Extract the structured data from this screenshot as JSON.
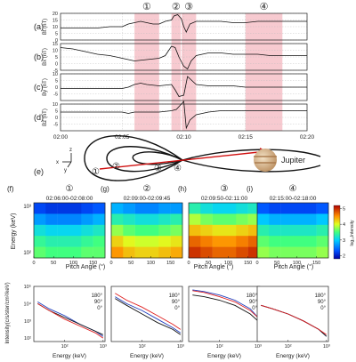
{
  "time_axis": {
    "ticks": [
      "02:00",
      "02:05",
      "02:10",
      "02:15",
      "02:20"
    ],
    "t_start_min": 0,
    "t_end_min": 20
  },
  "shaded_intervals": [
    {
      "marker": "①",
      "start_min": 6,
      "end_min": 8
    },
    {
      "marker": "②",
      "start_min": 9,
      "end_min": 9.75
    },
    {
      "marker": "③",
      "start_min": 9.83,
      "end_min": 11
    },
    {
      "marker": "④",
      "start_min": 15,
      "end_min": 18
    }
  ],
  "shade_color": "#f4b8c0",
  "time_panels": [
    {
      "panel": "(a)",
      "ylabel": "Bt (nT)",
      "ticks": [
        0,
        5,
        10,
        15,
        20
      ],
      "ylim": [
        0,
        20
      ],
      "x": [
        0,
        1,
        2,
        3,
        4,
        5,
        5.5,
        6,
        6.5,
        7,
        7.5,
        8,
        8.5,
        9,
        9.2,
        9.5,
        9.8,
        10,
        10.2,
        10.5,
        11,
        12,
        13,
        14,
        15,
        16,
        17,
        18,
        19,
        20
      ],
      "y": [
        9,
        9,
        9,
        9,
        10,
        10,
        12,
        13,
        14,
        13,
        12,
        12,
        14,
        15,
        18,
        19,
        16,
        10,
        6,
        12,
        14,
        14,
        14,
        13,
        13,
        14,
        14,
        14,
        14,
        14
      ]
    },
    {
      "panel": "(b)",
      "ylabel": "Bx (nT)",
      "ticks": [
        -5,
        0,
        5,
        10,
        15
      ],
      "ylim": [
        -5,
        15
      ],
      "x": [
        0,
        1,
        2,
        3,
        4,
        5,
        5.5,
        6,
        7,
        8,
        8.5,
        9,
        9.3,
        9.6,
        10,
        10.3,
        10.6,
        11,
        12,
        13,
        14,
        15,
        16,
        17,
        18,
        19,
        20
      ],
      "y": [
        12,
        11,
        9,
        7,
        6,
        4,
        3,
        2,
        3,
        4,
        6,
        13,
        12,
        5,
        -2,
        -4,
        2,
        6,
        8,
        8,
        7,
        7,
        7,
        6,
        6,
        6,
        6
      ]
    },
    {
      "panel": "(c)",
      "ylabel": "By (nT)",
      "ticks": [
        -5,
        0,
        5,
        10
      ],
      "ylim": [
        -10,
        10
      ],
      "x": [
        0,
        2,
        4,
        5,
        5.5,
        6,
        6.5,
        7,
        8,
        9,
        9.3,
        9.6,
        10,
        10.3,
        11,
        12,
        13,
        14,
        15,
        16,
        17,
        18,
        19,
        20
      ],
      "y": [
        -1,
        -1,
        -1,
        -1,
        0,
        2,
        3,
        2,
        1,
        2,
        -2,
        -7,
        -6,
        8,
        2,
        1,
        1,
        1,
        0,
        0,
        0,
        0,
        0,
        0
      ]
    },
    {
      "panel": "(d)",
      "ylabel": "Bz (nT)",
      "ticks": [
        -5,
        0,
        5,
        10
      ],
      "ylim": [
        -10,
        10
      ],
      "x": [
        0,
        2,
        4,
        5,
        5.5,
        6,
        7,
        8,
        9,
        9.4,
        9.8,
        10,
        10.2,
        10.5,
        11,
        12,
        13,
        14,
        15,
        16,
        17,
        18,
        19,
        20
      ],
      "y": [
        4,
        4,
        4,
        4,
        3,
        4,
        4,
        4,
        5,
        6,
        10,
        12,
        -8,
        -2,
        2,
        4,
        5,
        5,
        5,
        5,
        5,
        5,
        5,
        5
      ]
    }
  ],
  "schematic": {
    "panel": "(e)",
    "markers": [
      "①",
      "②",
      "③",
      "④"
    ],
    "planet_label": "Jupiter",
    "axis_labels": [
      "x",
      "y",
      "z"
    ]
  },
  "spectrograms": [
    {
      "panel": "(f)",
      "marker": "①",
      "title": "02:06:00-02:08:00",
      "grid": [
        [
          2.3,
          2.2,
          2.2,
          2.2,
          2.3,
          2.4
        ],
        [
          2.7,
          2.6,
          2.6,
          2.6,
          2.7,
          2.8
        ],
        [
          3.1,
          3.0,
          3.0,
          3.0,
          3.1,
          3.2
        ],
        [
          3.4,
          3.3,
          3.3,
          3.3,
          3.4,
          3.5
        ],
        [
          3.6,
          3.5,
          3.5,
          3.5,
          3.6,
          3.6
        ]
      ]
    },
    {
      "panel": "(g)",
      "marker": "②",
      "title": "02:09:00-02:09:45",
      "grid": [
        [
          2.8,
          2.7,
          2.6,
          2.6,
          2.7,
          2.7
        ],
        [
          3.3,
          3.2,
          3.1,
          3.1,
          3.2,
          3.3
        ],
        [
          3.8,
          3.6,
          3.5,
          3.5,
          3.6,
          3.7
        ],
        [
          4.3,
          4.1,
          4.0,
          4.0,
          4.1,
          4.2
        ],
        [
          4.6,
          4.4,
          4.3,
          4.3,
          4.4,
          4.5
        ]
      ]
    },
    {
      "panel": "(h)",
      "marker": "③",
      "title": "02:09:50-02:11:00",
      "grid": [
        [
          3.3,
          3.1,
          3.0,
          3.0,
          3.1,
          3.2
        ],
        [
          3.9,
          3.7,
          3.6,
          3.6,
          3.7,
          3.8
        ],
        [
          4.4,
          4.3,
          4.2,
          4.2,
          4.3,
          4.4
        ],
        [
          4.8,
          4.7,
          4.6,
          4.6,
          4.7,
          4.8
        ],
        [
          5.0,
          4.9,
          4.8,
          4.8,
          4.9,
          5.0
        ]
      ]
    },
    {
      "panel": "(i)",
      "marker": "④",
      "title": "02:15:00-02:18:00",
      "grid": [
        [
          2.4,
          2.3,
          2.3,
          2.3,
          2.3,
          2.4
        ],
        [
          2.9,
          2.8,
          2.8,
          2.8,
          2.8,
          2.9
        ],
        [
          3.3,
          3.2,
          3.2,
          3.2,
          3.2,
          3.3
        ],
        [
          3.6,
          3.5,
          3.5,
          3.5,
          3.5,
          3.6
        ],
        [
          3.8,
          3.7,
          3.7,
          3.7,
          3.7,
          3.8
        ]
      ]
    }
  ],
  "spectrogram_axes": {
    "ylabel": "Energy (keV)",
    "ytick_labels": [
      "10³",
      "10²"
    ],
    "xlabel": "Pitch Angle (°)",
    "xticks": [
      0,
      50,
      100,
      150
    ]
  },
  "colorbar": {
    "label": "log₁₀Intensity",
    "ticks": [
      2,
      3,
      4,
      5
    ],
    "range": [
      1.8,
      5.2
    ]
  },
  "spectra_axes": {
    "ylabel": "Intensity(c/s/ster/cm²/keV)",
    "ytick_labels": [
      "10⁵",
      "10⁴",
      "10³",
      "10²"
    ],
    "xlabel": "Energy (keV)",
    "xtick_labels": [
      "10²",
      "10³"
    ]
  },
  "spectra_legend": [
    {
      "label": "180°",
      "color": "#1f3fbf"
    },
    {
      "label": "90°",
      "color": "#111111"
    },
    {
      "label": "0°",
      "color": "#e02020"
    }
  ],
  "spectra": [
    {
      "x": [
        1.3,
        1.6,
        2.0,
        2.4,
        2.8,
        3.0
      ],
      "s180": [
        4.1,
        3.7,
        3.3,
        2.8,
        2.4,
        2.1
      ],
      "s90": [
        4.0,
        3.6,
        3.2,
        2.8,
        2.4,
        2.2
      ],
      "s0": [
        4.0,
        3.6,
        3.1,
        2.7,
        2.3,
        2.0
      ]
    },
    {
      "x": [
        1.3,
        1.6,
        2.0,
        2.4,
        2.8,
        3.0
      ],
      "s180": [
        4.4,
        4.0,
        3.6,
        3.1,
        2.6,
        2.3
      ],
      "s90": [
        4.3,
        3.9,
        3.4,
        2.9,
        2.5,
        2.2
      ],
      "s0": [
        4.6,
        4.2,
        3.8,
        3.3,
        2.8,
        2.5
      ]
    },
    {
      "x": [
        1.3,
        1.6,
        2.0,
        2.4,
        2.8,
        3.0
      ],
      "s180": [
        4.8,
        4.7,
        4.5,
        4.2,
        3.7,
        3.2
      ],
      "s90": [
        4.5,
        4.4,
        4.2,
        3.9,
        3.4,
        3.0
      ],
      "s0": [
        4.75,
        4.65,
        4.4,
        4.1,
        3.6,
        3.2
      ]
    },
    {
      "x": [
        1.3,
        1.6,
        2.0,
        2.4,
        2.8,
        3.0
      ],
      "s180": [
        3.9,
        3.7,
        3.4,
        3.0,
        2.5,
        2.1
      ],
      "s90": [
        3.9,
        3.7,
        3.4,
        3.0,
        2.5,
        2.1
      ],
      "s0": [
        3.9,
        3.7,
        3.4,
        3.0,
        2.5,
        2.2
      ]
    }
  ]
}
